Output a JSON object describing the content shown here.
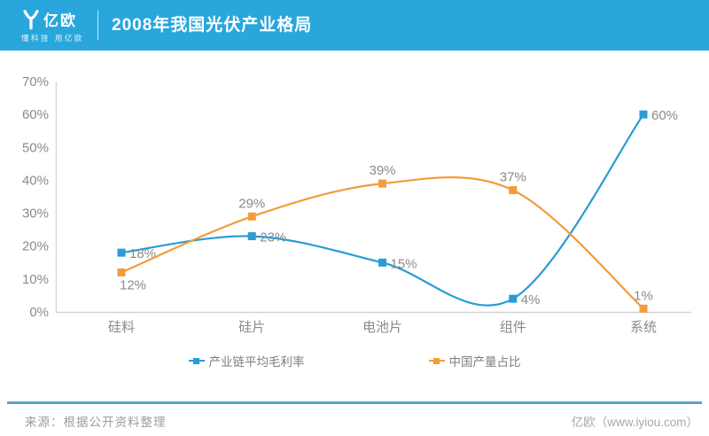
{
  "header": {
    "brand_name": "亿欧",
    "brand_tagline": "懂科技 用亿欧",
    "title": "2008年我国光伏产业格局",
    "bg_color": "#29A7DC"
  },
  "chart_data": {
    "type": "line",
    "title": "2008年我国光伏产业格局",
    "categories": [
      "硅料",
      "硅片",
      "电池片",
      "组件",
      "系统"
    ],
    "series": [
      {
        "name": "产业链平均毛利率",
        "color": "#2A9BD5",
        "values": [
          18,
          23,
          15,
          4,
          60
        ],
        "data_labels": [
          "18%",
          "23%",
          "15%",
          "4%",
          "60%"
        ],
        "label_placement": [
          "right",
          "right",
          "right",
          "right",
          "right"
        ]
      },
      {
        "name": "中国产量占比",
        "color": "#F29C3B",
        "values": [
          12,
          29,
          39,
          37,
          1
        ],
        "data_labels": [
          "12%",
          "29%",
          "39%",
          "37%",
          "1%"
        ],
        "label_placement": [
          "below",
          "above",
          "above",
          "above",
          "above"
        ]
      }
    ],
    "ylim": [
      0,
      70
    ],
    "y_tick_labels": [
      "0%",
      "10%",
      "20%",
      "30%",
      "40%",
      "50%",
      "60%",
      "70%"
    ],
    "grid": false,
    "smooth": true,
    "legend_position": "bottom",
    "axis_color": "#D6D6D6",
    "text_color": "#8A8A8A"
  },
  "footer": {
    "source": "来源：根据公开资料整理",
    "brand": "亿欧（www.iyiou.com）",
    "divider_color": "#5BA4CD"
  }
}
